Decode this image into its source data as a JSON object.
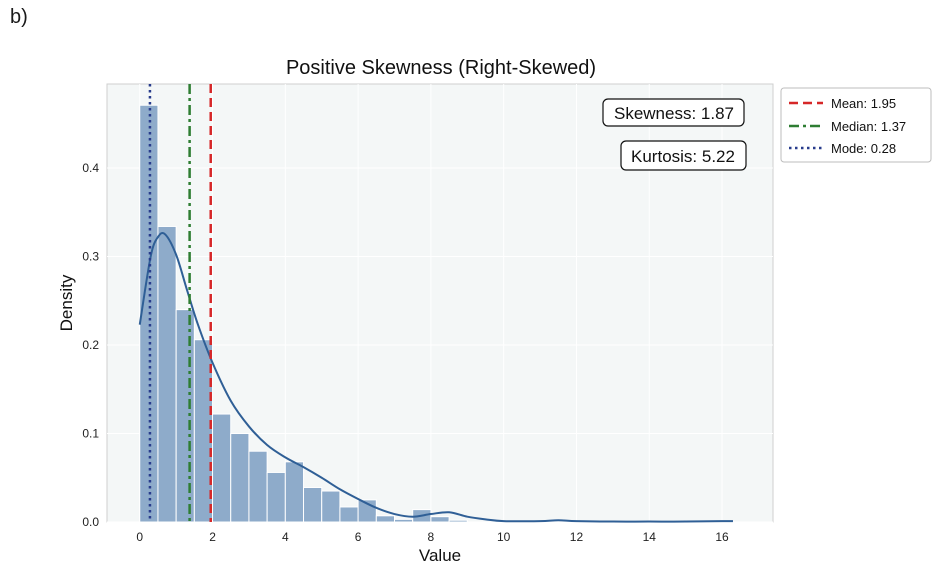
{
  "panel_label": "b)",
  "chart_data": {
    "type": "bar",
    "title": "Positive Skewness (Right-Skewed)",
    "xlabel": "Value",
    "ylabel": "Density",
    "xlim": [
      -0.9,
      17.4
    ],
    "ylim": [
      0,
      0.495
    ],
    "xticks": [
      0,
      2,
      4,
      6,
      8,
      10,
      12,
      14,
      16
    ],
    "yticks": [
      0.0,
      0.1,
      0.2,
      0.3,
      0.4
    ],
    "grid": true,
    "bin_width": 0.5,
    "histogram": {
      "bin_starts": [
        0,
        0.5,
        1.0,
        1.5,
        2.0,
        2.5,
        3.0,
        3.5,
        4.0,
        4.5,
        5.0,
        5.5,
        6.0,
        6.5,
        7.0,
        7.5,
        8.0,
        8.5
      ],
      "values": [
        0.471,
        0.334,
        0.24,
        0.206,
        0.122,
        0.1,
        0.08,
        0.056,
        0.068,
        0.039,
        0.035,
        0.017,
        0.025,
        0.007,
        0.003,
        0.014,
        0.006,
        0.002
      ]
    },
    "kde": {
      "x": [
        0,
        0.3,
        0.5,
        0.7,
        1.0,
        1.3,
        1.6,
        2.0,
        2.5,
        3.0,
        3.5,
        4.0,
        4.5,
        5.0,
        5.5,
        6.0,
        6.5,
        7.0,
        7.5,
        8.0,
        8.5,
        9.0,
        9.5,
        10.0,
        11.0,
        11.5,
        12.0,
        13.0,
        14.0,
        15.0,
        16.0,
        16.3
      ],
      "y": [
        0.223,
        0.3,
        0.322,
        0.325,
        0.302,
        0.262,
        0.223,
        0.18,
        0.137,
        0.108,
        0.087,
        0.073,
        0.062,
        0.05,
        0.037,
        0.026,
        0.016,
        0.009,
        0.006,
        0.009,
        0.011,
        0.006,
        0.003,
        0.001,
        0.001,
        0.002,
        0.001,
        0.0005,
        0.0005,
        0.0005,
        0.001,
        0.001
      ]
    },
    "vlines": [
      {
        "name": "Mean",
        "x": 1.95,
        "color": "#d62728",
        "style": "dashed",
        "label": "Mean: 1.95"
      },
      {
        "name": "Median",
        "x": 1.37,
        "color": "#2e7d32",
        "style": "dashdot",
        "label": "Median: 1.37"
      },
      {
        "name": "Mode",
        "x": 0.28,
        "color": "#283c8c",
        "style": "dotted",
        "label": "Mode: 0.28"
      }
    ],
    "annotations": [
      "Skewness: 1.87",
      "Kurtosis: 5.22"
    ],
    "legend_position": "outside-right",
    "bar_color": "#8eabca",
    "kde_color": "#2f5f96"
  }
}
